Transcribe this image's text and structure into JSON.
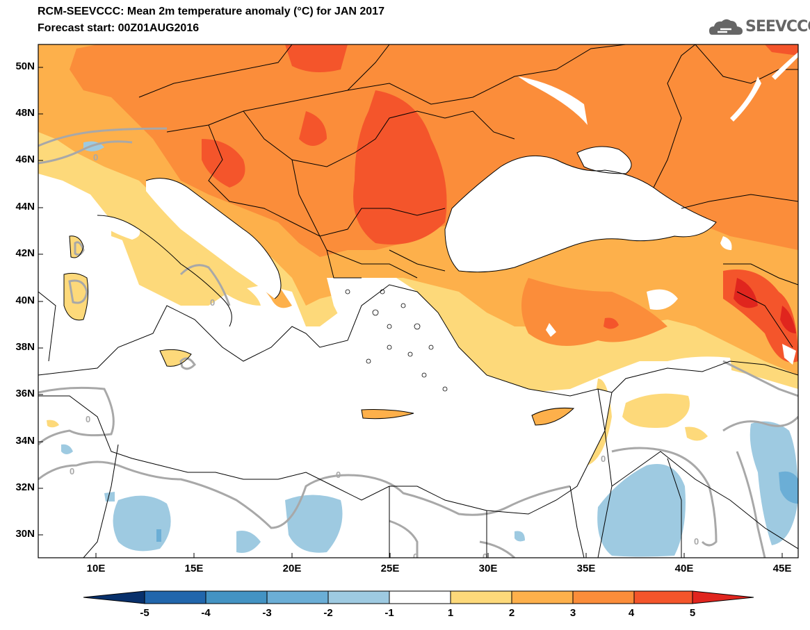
{
  "header": {
    "title": "RCM-SEEVCCC: Mean 2m temperature anomaly (°C) for JAN 2017",
    "subtitle": "Forecast start: 00Z01AUG2016",
    "logo_text": "SEEVCCC",
    "logo_icon": "cloud-icon"
  },
  "map": {
    "lat_labels": [
      "50N",
      "48N",
      "46N",
      "44N",
      "42N",
      "40N",
      "38N",
      "36N",
      "34N",
      "32N",
      "30N"
    ],
    "lon_labels": [
      "10E",
      "15E",
      "20E",
      "25E",
      "30E",
      "35E",
      "40E",
      "45E"
    ],
    "contour_label": "0",
    "colors": {
      "land_neutral": "#ffffff",
      "sea": "#ffffff",
      "anom_plus_1_2": "#fdd97a",
      "anom_plus_2_3": "#fdb04b",
      "anom_plus_3_4": "#fb8d3a",
      "anom_plus_4_5": "#f4552b",
      "anom_plus_5": "#e0251e",
      "anom_minus_1_2": "#9ecae1",
      "anom_minus_2_3": "#6baed6",
      "zero_contour": "#a8a8a8",
      "borders": "#000000"
    }
  },
  "colorbar": {
    "labels": [
      "-5",
      "-4",
      "-3",
      "-2",
      "-1",
      "1",
      "2",
      "3",
      "4",
      "5"
    ],
    "colors": [
      "#08306b",
      "#2166ac",
      "#4393c3",
      "#6baed6",
      "#9ecae1",
      "#ffffff",
      "#fdd97a",
      "#fdb04b",
      "#fb8d3a",
      "#f4552b",
      "#e0251e"
    ]
  }
}
